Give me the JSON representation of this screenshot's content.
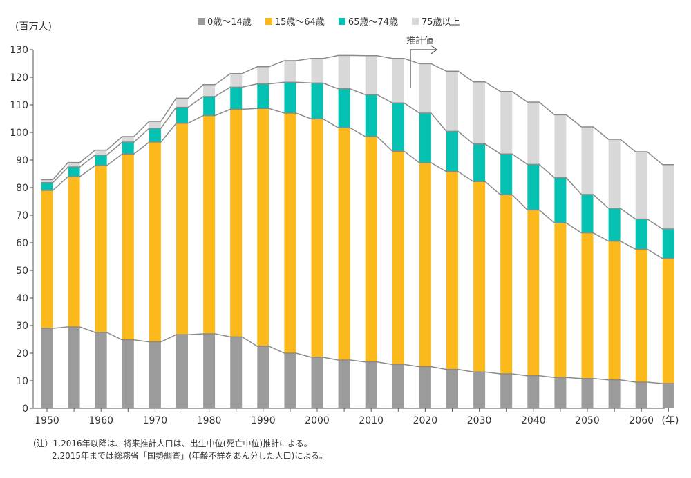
{
  "chart_data": {
    "type": "bar",
    "stacked": true,
    "unit_label": "(百万人)",
    "x_unit_label": "(年)",
    "projection_label": "推計値",
    "years": [
      1950,
      1955,
      1960,
      1965,
      1970,
      1975,
      1980,
      1985,
      1990,
      1995,
      2000,
      2005,
      2010,
      2015,
      2020,
      2025,
      2030,
      2035,
      2040,
      2045,
      2050,
      2055,
      2060,
      2065
    ],
    "x_tick_labels": [
      "1950",
      "1960",
      "1970",
      "1980",
      "1990",
      "2000",
      "2010",
      "2020",
      "2030",
      "2040",
      "2050",
      "2060"
    ],
    "y_ticks": [
      0,
      10,
      20,
      30,
      40,
      50,
      60,
      70,
      80,
      90,
      100,
      110,
      120,
      130
    ],
    "ylim": [
      0,
      130
    ],
    "series": [
      {
        "name": "0歳～14歳",
        "color": "#9b9b9b",
        "values": [
          29.0,
          29.5,
          27.5,
          24.8,
          24.1,
          26.7,
          27.0,
          25.9,
          22.5,
          20.0,
          18.5,
          17.5,
          16.8,
          15.9,
          15.1,
          14.1,
          13.2,
          12.5,
          11.8,
          11.2,
          10.8,
          10.3,
          9.5,
          9.0
        ]
      },
      {
        "name": "15歳～64歳",
        "color": "#fcb91c",
        "values": [
          50.0,
          54.5,
          60.5,
          67.4,
          72.4,
          76.6,
          79.1,
          82.5,
          86.2,
          87.0,
          86.4,
          84.2,
          81.7,
          77.3,
          73.9,
          71.7,
          69.0,
          64.9,
          60.1,
          56.0,
          52.8,
          50.3,
          48.2,
          45.3
        ]
      },
      {
        "name": "65歳～74歳",
        "color": "#05c1b1",
        "values": [
          2.8,
          3.5,
          3.8,
          4.3,
          5.0,
          5.8,
          6.9,
          8.0,
          8.9,
          11.2,
          13.0,
          14.1,
          15.2,
          17.5,
          18.0,
          14.6,
          13.6,
          14.8,
          16.5,
          16.4,
          13.9,
          11.9,
          10.9,
          10.7
        ]
      },
      {
        "name": "75歳以上",
        "color": "#d8d8d8",
        "values": [
          1.1,
          1.6,
          1.8,
          2.0,
          2.5,
          3.3,
          4.3,
          4.9,
          6.2,
          7.8,
          8.9,
          12.1,
          14.1,
          16.1,
          17.9,
          21.8,
          22.5,
          22.6,
          22.6,
          22.8,
          24.5,
          25.0,
          24.4,
          23.3
        ]
      }
    ]
  },
  "notes": {
    "line1": "(注）1.2016年以降は、将来推計人口は、出生中位(死亡中位)推計による。",
    "line2": "2.2015年までは総務省「国勢調査」(年齢不詳をあん分した人口)による。"
  }
}
